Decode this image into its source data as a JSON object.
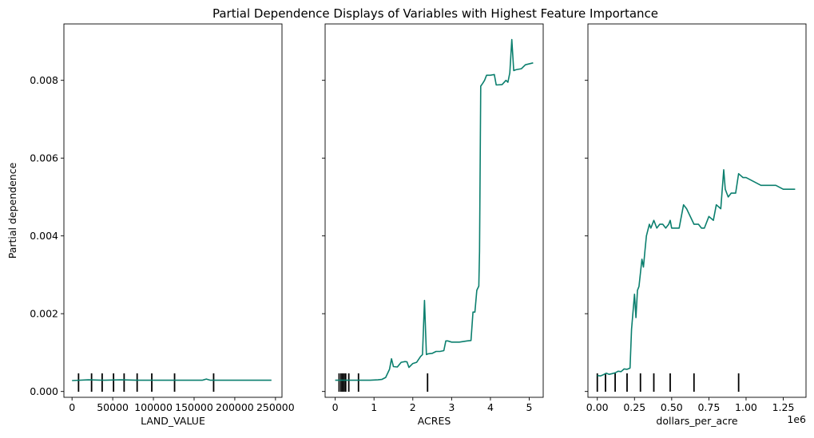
{
  "figure": {
    "title": "Partial Dependence Displays of Variables with Highest Feature Importance",
    "line_color": "#0b7f6e",
    "deciles_color": "#000000",
    "shared_ylabel": "Partial dependence"
  },
  "chart_data": [
    {
      "type": "line",
      "xlabel": "LAND_VALUE",
      "ylabel": "Partial dependence",
      "xlim": [
        -10000,
        258000
      ],
      "ylim": [
        -0.00015,
        0.00945
      ],
      "xticks": [
        0,
        50000,
        100000,
        150000,
        200000,
        250000
      ],
      "xtick_labels": [
        "0",
        "50000",
        "100000",
        "150000",
        "200000",
        "250000"
      ],
      "yticks": [
        0.0,
        0.002,
        0.004,
        0.006,
        0.008
      ],
      "ytick_labels": [
        "0.000",
        "0.002",
        "0.004",
        "0.006",
        "0.008"
      ],
      "x": [
        0,
        20000,
        40000,
        60000,
        80000,
        100000,
        120000,
        140000,
        160000,
        165000,
        170000,
        180000,
        200000,
        220000,
        245000
      ],
      "y": [
        0.00028,
        0.0003,
        0.00029,
        0.0003,
        0.00029,
        0.00029,
        0.00029,
        0.00029,
        0.00029,
        0.00032,
        0.00029,
        0.00029,
        0.00029,
        0.00029,
        0.00029
      ],
      "deciles": [
        8000,
        24000,
        37000,
        51000,
        64000,
        80000,
        98000,
        126000,
        174000
      ]
    },
    {
      "type": "line",
      "xlabel": "ACRES",
      "ylabel": "",
      "xlim": [
        -0.26,
        5.36
      ],
      "ylim": [
        -0.00015,
        0.00945
      ],
      "xticks": [
        0,
        1,
        2,
        3,
        4,
        5
      ],
      "xtick_labels": [
        "0",
        "1",
        "2",
        "3",
        "4",
        "5"
      ],
      "yticks": [
        0.0,
        0.002,
        0.004,
        0.006,
        0.008
      ],
      "ytick_labels": [
        "",
        "",
        "",
        "",
        ""
      ],
      "x": [
        0.0,
        0.3,
        0.6,
        0.9,
        1.1,
        1.2,
        1.3,
        1.4,
        1.45,
        1.5,
        1.6,
        1.7,
        1.8,
        1.85,
        1.9,
        2.0,
        2.1,
        2.2,
        2.25,
        2.3,
        2.35,
        2.4,
        2.5,
        2.6,
        2.7,
        2.8,
        2.85,
        2.9,
        3.0,
        3.2,
        3.4,
        3.5,
        3.55,
        3.6,
        3.65,
        3.7,
        3.72,
        3.75,
        3.8,
        3.85,
        3.9,
        4.0,
        4.1,
        4.15,
        4.3,
        4.4,
        4.45,
        4.5,
        4.55,
        4.6,
        4.65,
        4.7,
        4.8,
        4.9,
        5.1
      ],
      "y": [
        0.00029,
        0.00029,
        0.00029,
        0.00029,
        0.0003,
        0.00031,
        0.00036,
        0.00057,
        0.00084,
        0.00064,
        0.00063,
        0.00075,
        0.00077,
        0.00076,
        0.00062,
        0.00072,
        0.00075,
        0.0009,
        0.00095,
        0.00234,
        0.00095,
        0.00097,
        0.00098,
        0.00103,
        0.00103,
        0.00105,
        0.0013,
        0.0013,
        0.00127,
        0.00127,
        0.0013,
        0.00131,
        0.00204,
        0.00204,
        0.0026,
        0.00271,
        0.0036,
        0.00785,
        0.00792,
        0.008,
        0.00813,
        0.00813,
        0.00815,
        0.00788,
        0.00789,
        0.008,
        0.00795,
        0.00819,
        0.00905,
        0.00825,
        0.00827,
        0.00828,
        0.0083,
        0.0084,
        0.00845
      ],
      "deciles": [
        0.1,
        0.15,
        0.19,
        0.23,
        0.27,
        0.35,
        0.6,
        2.38
      ]
    },
    {
      "type": "line",
      "xlabel": "dollars_per_acre",
      "ylabel": "",
      "x_offset_label": "1e6",
      "xlim": [
        -0.063,
        1.403
      ],
      "ylim": [
        -0.00015,
        0.00945
      ],
      "xticks": [
        0.0,
        0.25,
        0.5,
        0.75,
        1.0,
        1.25
      ],
      "xtick_labels": [
        "0.00",
        "0.25",
        "0.50",
        "0.75",
        "1.00",
        "1.25"
      ],
      "yticks": [
        0.0,
        0.002,
        0.004,
        0.006,
        0.008
      ],
      "ytick_labels": [
        "",
        "",
        "",
        "",
        ""
      ],
      "x": [
        0.0,
        0.02,
        0.04,
        0.06,
        0.08,
        0.1,
        0.12,
        0.14,
        0.16,
        0.18,
        0.2,
        0.22,
        0.23,
        0.25,
        0.26,
        0.27,
        0.28,
        0.3,
        0.31,
        0.32,
        0.33,
        0.35,
        0.36,
        0.38,
        0.4,
        0.42,
        0.44,
        0.46,
        0.48,
        0.49,
        0.5,
        0.55,
        0.56,
        0.58,
        0.6,
        0.65,
        0.68,
        0.7,
        0.72,
        0.75,
        0.78,
        0.8,
        0.83,
        0.85,
        0.86,
        0.88,
        0.9,
        0.93,
        0.95,
        0.98,
        1.0,
        1.05,
        1.1,
        1.15,
        1.2,
        1.25,
        1.33
      ],
      "y": [
        0.00041,
        0.0004,
        0.00043,
        0.00047,
        0.00044,
        0.00046,
        0.00048,
        0.00052,
        0.00051,
        0.00058,
        0.00057,
        0.0006,
        0.0016,
        0.0025,
        0.0019,
        0.0026,
        0.0027,
        0.0034,
        0.0032,
        0.0036,
        0.004,
        0.0043,
        0.0042,
        0.0044,
        0.0042,
        0.0043,
        0.0043,
        0.0042,
        0.0043,
        0.0044,
        0.0042,
        0.0042,
        0.0044,
        0.0048,
        0.0047,
        0.0043,
        0.0043,
        0.0042,
        0.0042,
        0.0045,
        0.0044,
        0.0048,
        0.0047,
        0.0057,
        0.0052,
        0.005,
        0.0051,
        0.0051,
        0.0056,
        0.0055,
        0.0055,
        0.0054,
        0.0053,
        0.0053,
        0.0053,
        0.0052,
        0.0052
      ],
      "deciles": [
        0.0,
        0.055,
        0.12,
        0.2,
        0.29,
        0.38,
        0.49,
        0.65,
        0.95
      ]
    }
  ]
}
